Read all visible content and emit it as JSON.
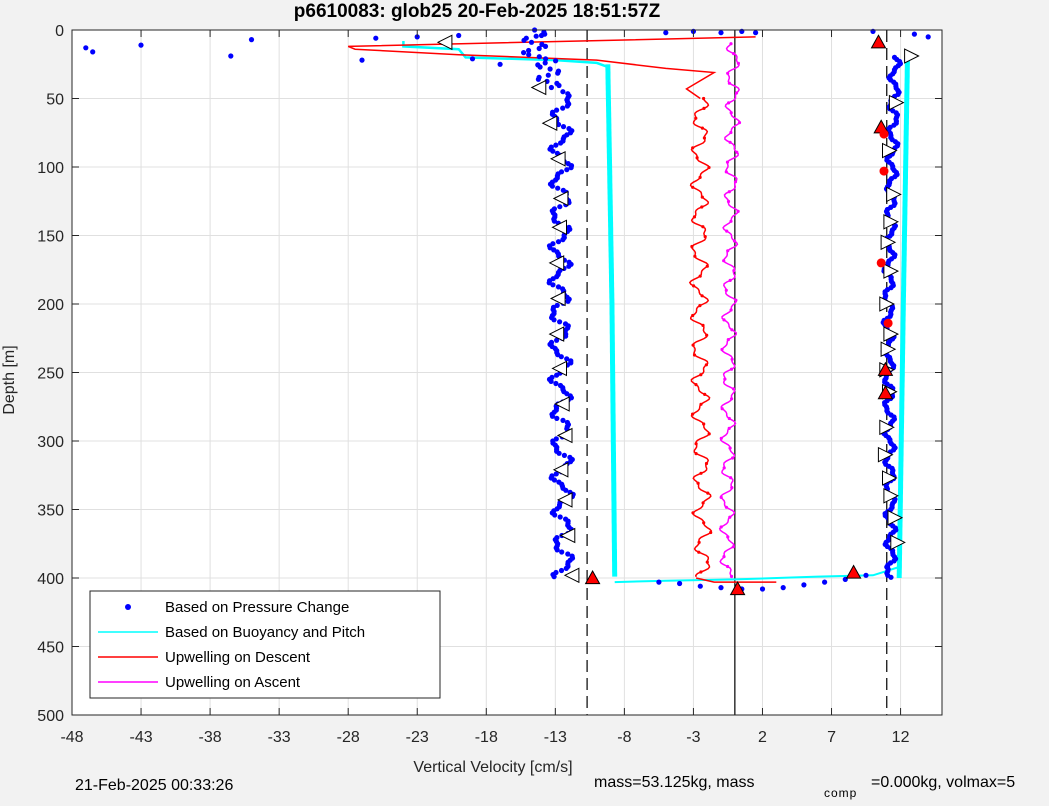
{
  "chart_data": {
    "type": "scatter",
    "title": "p6610083: glob25 20-Feb-2025 18:51:57Z",
    "xlabel": "Vertical Velocity [cm/s]",
    "ylabel": "Depth [m]",
    "xlim": [
      -48,
      15
    ],
    "ylim": [
      0,
      500
    ],
    "y_reversed": true,
    "grid": true,
    "xticks": [
      -48,
      -43,
      -38,
      -33,
      -28,
      -23,
      -18,
      -13,
      -8,
      -3,
      2,
      7,
      12
    ],
    "yticks": [
      0,
      50,
      100,
      150,
      200,
      250,
      300,
      350,
      400,
      450,
      500
    ],
    "legend_position": "bottom-left",
    "reference_lines": [
      {
        "style": "dashed",
        "x": -10.7
      },
      {
        "style": "solid",
        "x": 0
      },
      {
        "style": "dashed",
        "x": 11
      }
    ],
    "series": [
      {
        "name": "Based on Pressure Change",
        "color": "#0000ff",
        "marker": "dot"
      },
      {
        "name": "Based on Buoyancy and Pitch",
        "color": "#00ffff",
        "marker": "line"
      },
      {
        "name": "Upwelling on Descent",
        "color": "#ff0000",
        "marker": "line"
      },
      {
        "name": "Upwelling on Ascent",
        "color": "#ff00ff",
        "marker": "line"
      }
    ],
    "descent_pressure": {
      "depth": [
        0,
        200,
        400
      ],
      "mean_velocity": [
        -12.5,
        -12.7,
        -12.4
      ],
      "amplitude": 0.6
    },
    "ascent_pressure": {
      "depth": [
        20,
        200,
        400
      ],
      "mean_velocity": [
        11.6,
        11.1,
        11.3
      ],
      "amplitude": 0.3
    },
    "descent_buoyancy": {
      "depth": [
        25,
        200,
        400
      ],
      "mean_velocity": [
        -9.2,
        -8.9,
        -8.7
      ]
    },
    "ascent_buoyancy": {
      "depth": [
        20,
        200,
        400
      ],
      "mean_velocity": [
        12.5,
        12.2,
        11.9
      ]
    },
    "descent_upwelling": {
      "depth": [
        50,
        200,
        400
      ],
      "mean_velocity": [
        -2.5,
        -2.6,
        -2.3
      ],
      "amplitude": 0.5
    },
    "ascent_upwelling": {
      "depth": [
        10,
        200,
        400
      ],
      "mean_velocity": [
        -0.1,
        -0.4,
        -0.6
      ],
      "amplitude": 0.4
    },
    "surface_outliers": [
      {
        "x": -47,
        "y": 13
      },
      {
        "x": -46.5,
        "y": 16
      },
      {
        "x": -43,
        "y": 11
      },
      {
        "x": -36.5,
        "y": 19
      },
      {
        "x": -35,
        "y": 7
      },
      {
        "x": -27,
        "y": 22
      },
      {
        "x": -26,
        "y": 6
      },
      {
        "x": -23,
        "y": 5
      },
      {
        "x": -20,
        "y": 4
      },
      {
        "x": -19,
        "y": 21
      },
      {
        "x": -17,
        "y": 25
      },
      {
        "x": -14,
        "y": 4
      },
      {
        "x": -5,
        "y": 2
      },
      {
        "x": -3,
        "y": 1
      },
      {
        "x": -1,
        "y": 2
      },
      {
        "x": 0.5,
        "y": 1
      },
      {
        "x": 1.5,
        "y": 2
      },
      {
        "x": 10,
        "y": 1
      },
      {
        "x": 13,
        "y": 3
      },
      {
        "x": 14,
        "y": 5
      }
    ],
    "bottom_turn_pressure": [
      {
        "x": -5.5,
        "y": 403
      },
      {
        "x": -4,
        "y": 404
      },
      {
        "x": -2.5,
        "y": 406
      },
      {
        "x": -1,
        "y": 407
      },
      {
        "x": 0.5,
        "y": 408
      },
      {
        "x": 2,
        "y": 408
      },
      {
        "x": 3.5,
        "y": 407
      },
      {
        "x": 5,
        "y": 405
      },
      {
        "x": 6.5,
        "y": 403
      },
      {
        "x": 8,
        "y": 401
      },
      {
        "x": 9.5,
        "y": 398
      },
      {
        "x": 11,
        "y": 392
      }
    ],
    "surface_descent_upwelling": [
      {
        "x": 1.5,
        "y": 5
      },
      {
        "x": -28,
        "y": 12
      },
      {
        "x": -27.5,
        "y": 14
      },
      {
        "x": -20,
        "y": 18
      },
      {
        "x": -10,
        "y": 22
      },
      {
        "x": -5,
        "y": 28
      },
      {
        "x": -1.5,
        "y": 31
      },
      {
        "x": -3.5,
        "y": 43
      },
      {
        "x": -2.5,
        "y": 50
      }
    ],
    "surface_descent_buoyancy": [
      {
        "x": -24,
        "y": 8
      },
      {
        "x": -24,
        "y": 12
      },
      {
        "x": -20,
        "y": 14
      },
      {
        "x": -19.5,
        "y": 20
      },
      {
        "x": -13,
        "y": 22
      },
      {
        "x": -10,
        "y": 24
      },
      {
        "x": -9.2,
        "y": 27
      }
    ],
    "bottom_turn_buoyancy": [
      {
        "x": -8.7,
        "y": 403
      },
      {
        "x": -5,
        "y": 402
      },
      {
        "x": 0,
        "y": 401
      },
      {
        "x": 6,
        "y": 399
      },
      {
        "x": 10,
        "y": 398
      },
      {
        "x": 11.9,
        "y": 392
      }
    ],
    "descent_triangles": [
      {
        "x": -21,
        "y": 9
      },
      {
        "x": -14.2,
        "y": 42
      },
      {
        "x": -13.4,
        "y": 68
      },
      {
        "x": -12.8,
        "y": 94
      },
      {
        "x": -12.6,
        "y": 123
      },
      {
        "x": -12.7,
        "y": 144
      },
      {
        "x": -12.9,
        "y": 170
      },
      {
        "x": -12.8,
        "y": 196
      },
      {
        "x": -12.9,
        "y": 222
      },
      {
        "x": -12.7,
        "y": 247
      },
      {
        "x": -12.5,
        "y": 273
      },
      {
        "x": -12.3,
        "y": 296
      },
      {
        "x": -12.6,
        "y": 321
      },
      {
        "x": -12.3,
        "y": 343
      },
      {
        "x": -12.1,
        "y": 369
      },
      {
        "x": -11.8,
        "y": 398
      }
    ],
    "ascent_triangles": [
      {
        "x": 12.8,
        "y": 19
      },
      {
        "x": 11.7,
        "y": 53
      },
      {
        "x": 11.2,
        "y": 88
      },
      {
        "x": 11.5,
        "y": 120
      },
      {
        "x": 11.3,
        "y": 140
      },
      {
        "x": 11.1,
        "y": 155
      },
      {
        "x": 11.3,
        "y": 176
      },
      {
        "x": 11,
        "y": 200
      },
      {
        "x": 11.3,
        "y": 222
      },
      {
        "x": 11.1,
        "y": 233
      },
      {
        "x": 11,
        "y": 248
      },
      {
        "x": 11.2,
        "y": 264
      },
      {
        "x": 11,
        "y": 290
      },
      {
        "x": 10.9,
        "y": 310
      },
      {
        "x": 11.2,
        "y": 327
      },
      {
        "x": 11.3,
        "y": 340
      },
      {
        "x": 11.6,
        "y": 356
      },
      {
        "x": 11.8,
        "y": 374
      }
    ],
    "red_triangles": [
      {
        "x": 10.4,
        "y": 9
      },
      {
        "x": 10.6,
        "y": 71
      },
      {
        "x": 10.9,
        "y": 248
      },
      {
        "x": 10.9,
        "y": 265
      },
      {
        "x": 8.6,
        "y": 396
      },
      {
        "x": -10.3,
        "y": 400
      },
      {
        "x": 0.2,
        "y": 408
      }
    ],
    "red_dots": [
      {
        "x": 10.8,
        "y": 76
      },
      {
        "x": 10.8,
        "y": 103
      },
      {
        "x": 10.6,
        "y": 170
      },
      {
        "x": 11.1,
        "y": 214
      }
    ]
  },
  "footer": {
    "timestamp": "21-Feb-2025 00:33:26",
    "mass_text": "mass=53.125kg, mass",
    "comp_sub": "comp",
    "comp_text": "=0.000kg, volmax=5"
  }
}
